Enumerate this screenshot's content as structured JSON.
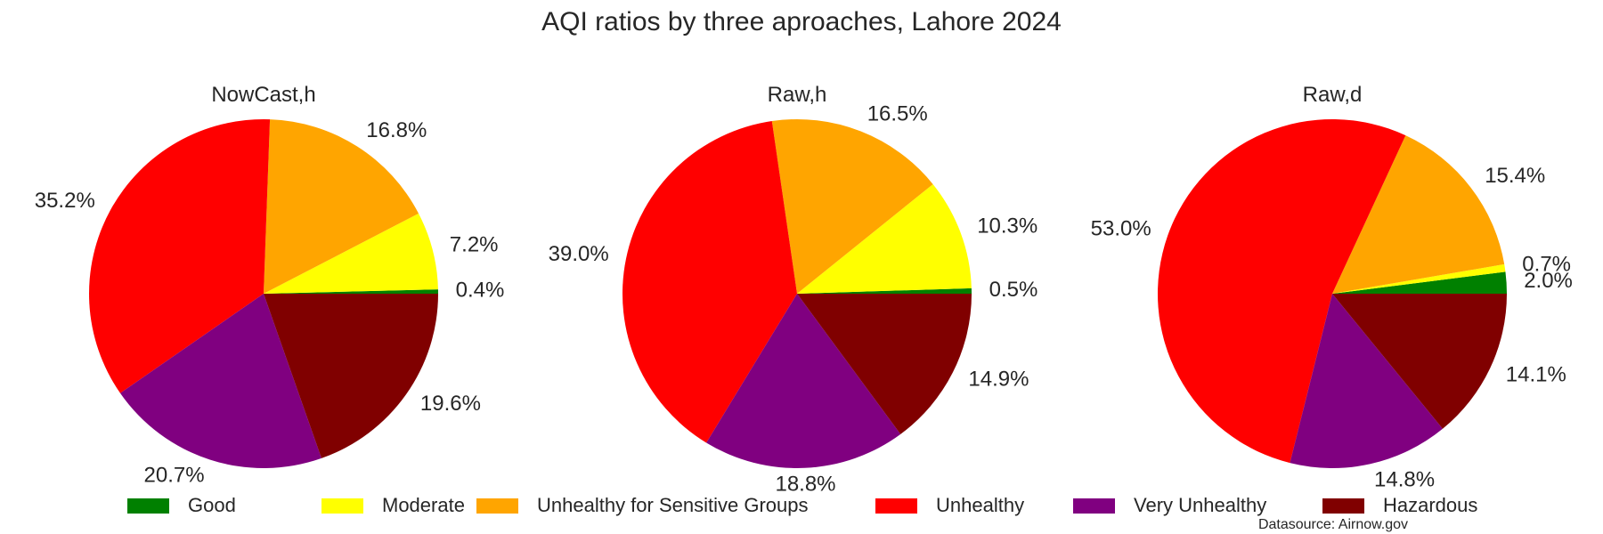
{
  "chart_data": {
    "type": "pie",
    "title": "AQI ratios by three aproaches, Lahore 2024",
    "categories": [
      "Good",
      "Moderate",
      "Unhealthy for Sensitive Groups",
      "Unhealthy",
      "Very Unhealthy",
      "Hazardous"
    ],
    "colors": {
      "Good": "#008000",
      "Moderate": "#ffff00",
      "Unhealthy for Sensitive Groups": "#ffa500",
      "Unhealthy": "#ff0000",
      "Very Unhealthy": "#800080",
      "Hazardous": "#800000"
    },
    "pies": [
      {
        "title": "NowCast,h",
        "values": [
          0.4,
          7.2,
          16.8,
          35.2,
          20.7,
          19.6
        ],
        "labels": [
          "0.4%",
          "7.2%",
          "16.8%",
          "35.2%",
          "20.7%",
          "19.6%"
        ]
      },
      {
        "title": "Raw,h",
        "values": [
          0.5,
          10.3,
          16.5,
          39.0,
          18.8,
          14.9
        ],
        "labels": [
          "0.5%",
          "10.3%",
          "16.5%",
          "39.0%",
          "18.8%",
          "14.9%"
        ]
      },
      {
        "title": "Raw,d",
        "values": [
          2.0,
          0.7,
          15.4,
          53.0,
          14.8,
          14.1
        ],
        "labels": [
          "2.0%",
          "0.7%",
          "15.4%",
          "53.0%",
          "14.8%",
          "14.1%"
        ]
      }
    ],
    "start_angle_deg": 0,
    "direction": "counterclockwise",
    "legend_position": "bottom",
    "source_note": "Datasource: Airnow.gov"
  }
}
